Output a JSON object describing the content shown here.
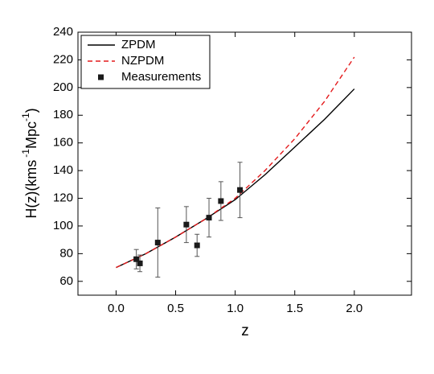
{
  "chart_data": {
    "type": "line",
    "xlabel": "z",
    "ylabel_parts": [
      "H(z)(kms",
      "-1",
      "Mpc",
      "-1",
      ")"
    ],
    "xlim": [
      -0.32,
      2.48
    ],
    "xticks": [
      {
        "value": 0,
        "label": "0.0"
      },
      0.5,
      {
        "value": 1,
        "label": "1.0"
      },
      1.5,
      {
        "value": 2,
        "label": "2.0"
      }
    ],
    "ylim": [
      50,
      240
    ],
    "yticks": [
      60,
      80,
      100,
      120,
      140,
      160,
      180,
      200,
      220,
      240
    ],
    "legend": "upper-left",
    "series": [
      {
        "name": "ZPDM",
        "kind": "line",
        "color": "#000000",
        "dash": "solid",
        "x": [
          0,
          0.25,
          0.5,
          0.75,
          1.0,
          1.25,
          1.5,
          1.75,
          2.0
        ],
        "values": [
          70,
          80,
          92,
          105,
          119,
          137,
          157,
          177,
          199
        ]
      },
      {
        "name": "NZPDM",
        "kind": "line",
        "color": "#e41a1c",
        "dash": "dashed",
        "x": [
          0,
          0.25,
          0.5,
          0.75,
          1.0,
          1.25,
          1.5,
          1.75,
          2.0
        ],
        "values": [
          70,
          80,
          92,
          105,
          120,
          140,
          163,
          190,
          222
        ]
      },
      {
        "name": "Measurements",
        "kind": "scatter",
        "color": "#1a1a1a",
        "x": [
          0.17,
          0.2,
          0.35,
          0.59,
          0.68,
          0.78,
          0.88,
          1.04
        ],
        "values": [
          76,
          73,
          88,
          101,
          86,
          106,
          118,
          126
        ],
        "errors": [
          7,
          6,
          25,
          13,
          8,
          14,
          14,
          20
        ]
      }
    ]
  }
}
